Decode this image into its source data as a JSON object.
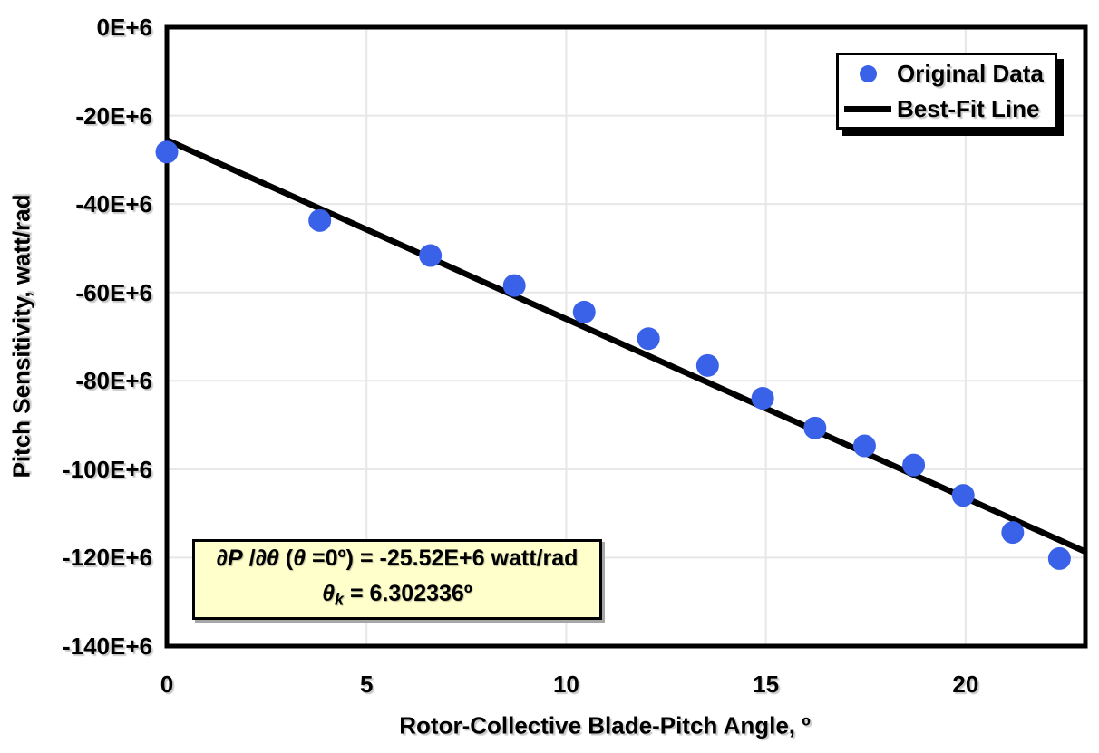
{
  "chart_data": {
    "type": "scatter",
    "title": "",
    "xlabel": "Rotor-Collective Blade-Pitch Angle, º",
    "ylabel": "Pitch Sensitivity, watt/rad",
    "xlim": [
      0,
      23
    ],
    "ylim_E6": [
      -140,
      0
    ],
    "y_unit": "E+6 watt/rad",
    "grid": true,
    "legend_position": "top-right",
    "x_ticks": [
      {
        "v": 0,
        "label": "0"
      },
      {
        "v": 5,
        "label": "5"
      },
      {
        "v": 10,
        "label": "10"
      },
      {
        "v": 15,
        "label": "15"
      },
      {
        "v": 20,
        "label": "20"
      }
    ],
    "y_ticks": [
      {
        "v": 0,
        "label": "0E+6"
      },
      {
        "v": -20,
        "label": "-20E+6"
      },
      {
        "v": -40,
        "label": "-40E+6"
      },
      {
        "v": -60,
        "label": "-60E+6"
      },
      {
        "v": -80,
        "label": "-80E+6"
      },
      {
        "v": -100,
        "label": "-100E+6"
      },
      {
        "v": -120,
        "label": "-120E+6"
      },
      {
        "v": -140,
        "label": "-140E+6"
      }
    ],
    "series": [
      {
        "name": "Original Data",
        "kind": "scatter",
        "color": "#3A62E8",
        "x": [
          0.0,
          3.83,
          6.6,
          8.7,
          10.45,
          12.06,
          13.54,
          14.92,
          16.23,
          17.47,
          18.7,
          19.94,
          21.18,
          22.35
        ],
        "y_E6": [
          -28.24,
          -43.73,
          -51.66,
          -58.44,
          -64.44,
          -70.46,
          -76.53,
          -83.94,
          -90.67,
          -94.71,
          -99.04,
          -105.9,
          -114.3,
          -120.2
        ]
      },
      {
        "name": "Best-Fit Line",
        "kind": "line",
        "color": "#000000",
        "fit": {
          "intercept_E6": -25.52,
          "theta_k_deg": 6.302336
        }
      }
    ]
  },
  "axes": {
    "x_title": "Rotor-Collective Blade-Pitch Angle, º",
    "y_title": "Pitch Sensitivity, watt/rad"
  },
  "legend": {
    "items": [
      {
        "label": "Original Data"
      },
      {
        "label": "Best-Fit Line"
      }
    ]
  },
  "annotation": {
    "line1": {
      "dP": "∂P",
      "slash": " /",
      "dtheta": "∂θ",
      "open_paren": " (",
      "theta": "θ",
      "cond": " =0º) = ",
      "value": "-25.52E+6",
      "unit": " watt/rad"
    },
    "line2": {
      "theta": "θ",
      "sub": "k",
      "equals": " = ",
      "value": "6.302336º"
    }
  },
  "colors": {
    "marker": "#3A62E8",
    "fit_line": "#000000",
    "grid": "#E7E7E7",
    "frame": "#000000",
    "annotation_bg": "#FFFFCC"
  }
}
